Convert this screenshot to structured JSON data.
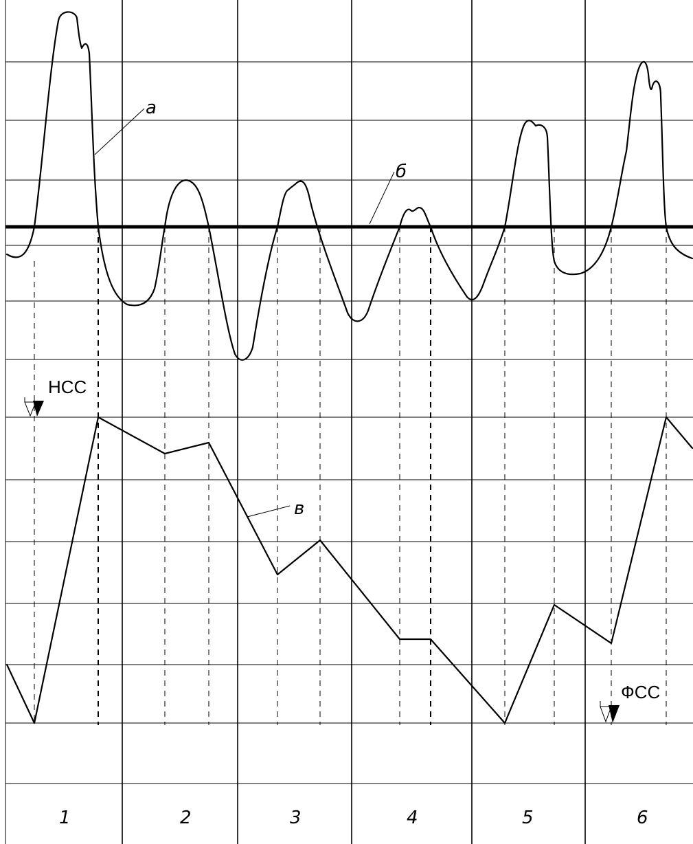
{
  "labels": {
    "curve_a": "а",
    "threshold_b": "б",
    "curve_v": "в",
    "start_marker": "НСС",
    "end_marker": "ФСС"
  },
  "steps": [
    "1",
    "2",
    "3",
    "4",
    "5",
    "6"
  ]
}
